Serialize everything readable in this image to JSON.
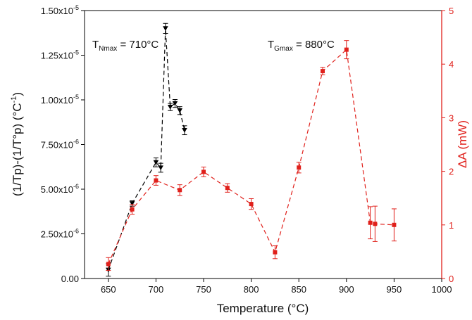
{
  "chart_data": {
    "type": "line",
    "xlabel": "Temperature (°C)",
    "ylabel_left": "(1/Tp)-(1/T°p) (°C",
    "ylabel_left_sup": "-1",
    "ylabel_left_end": ")",
    "ylabel_right": "ΔA (mW)",
    "xlim": [
      625,
      1000
    ],
    "ylim_left": [
      0,
      1.5e-05
    ],
    "ylim_right": [
      0,
      5
    ],
    "x_ticks": [
      650,
      700,
      750,
      800,
      850,
      900,
      950,
      1000
    ],
    "x_tick_labels": [
      "650",
      "700",
      "750",
      "800",
      "850",
      "900",
      "950",
      "1000"
    ],
    "y_left_ticks": [
      0,
      2.5e-06,
      5e-06,
      7.5e-06,
      1e-05,
      1.25e-05,
      1.5e-05
    ],
    "y_left_tick_labels": [
      {
        "base": "0.00",
        "exp": ""
      },
      {
        "base": "2.50x10",
        "exp": "-6"
      },
      {
        "base": "5.00x10",
        "exp": "-6"
      },
      {
        "base": "7.50x10",
        "exp": "-6"
      },
      {
        "base": "1.00x10",
        "exp": "-5"
      },
      {
        "base": "1.25x10",
        "exp": "-5"
      },
      {
        "base": "1.50x10",
        "exp": "-5"
      }
    ],
    "y_right_ticks": [
      0,
      1,
      2,
      3,
      4,
      5
    ],
    "y_right_tick_labels": [
      "0",
      "1",
      "2",
      "3",
      "4",
      "5"
    ],
    "grid": false,
    "series": [
      {
        "axis": "left",
        "color": "#000000",
        "marker": "triangle-down",
        "line": "dashed",
        "x": [
          650,
          675,
          700,
          705,
          710,
          715,
          720,
          725,
          730
        ],
        "y": [
          4.8e-07,
          4.2e-06,
          6.5e-06,
          6.2e-06,
          1.4e-05,
          9.6e-06,
          9.8e-06,
          9.4e-06,
          8.3e-06
        ],
        "err": [
          3.5e-07,
          1.5e-07,
          2.5e-07,
          2.5e-07,
          2.8e-07,
          2e-07,
          2.2e-07,
          2.2e-07,
          2.5e-07
        ]
      },
      {
        "axis": "right",
        "color": "#e0201b",
        "marker": "square",
        "line": "dashed",
        "x": [
          650,
          675,
          700,
          725,
          750,
          775,
          800,
          825,
          850,
          875,
          900,
          925,
          930,
          950
        ],
        "y": [
          0.27,
          1.29,
          1.83,
          1.65,
          1.99,
          1.69,
          1.39,
          0.49,
          2.07,
          3.87,
          4.27,
          1.04,
          1.02,
          1.0
        ],
        "err": [
          0.12,
          0.09,
          0.09,
          0.1,
          0.09,
          0.08,
          0.1,
          0.12,
          0.1,
          0.07,
          0.17,
          0.3,
          0.33,
          0.3
        ]
      }
    ],
    "annotations": [
      {
        "id": "tn",
        "main": "T",
        "sub": "Nmax",
        "value": " = 710°C"
      },
      {
        "id": "tg",
        "main": "T",
        "sub": "Gmax",
        "value": " = 880°C"
      }
    ]
  }
}
